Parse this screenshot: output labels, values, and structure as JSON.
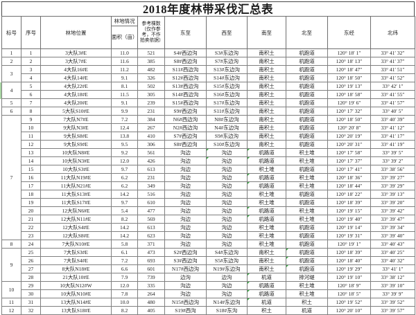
{
  "title": "2018年度林带采伐汇总表",
  "colors": {
    "flag_green": "#3fae49",
    "selection_green": "#a8d5a2"
  },
  "table": {
    "headers": {
      "label": "标号",
      "seq": "序号",
      "location": "林地位置",
      "land_group": "林地情况",
      "area": "面积（亩）",
      "count": "参考棵数（仅作参考，不作拍卖依据）",
      "east": "东至",
      "west": "西至",
      "south": "南至",
      "north": "北至",
      "lng": "东经",
      "lat": "北纬"
    },
    "column_keys": [
      "seq",
      "location",
      "area",
      "count",
      "east",
      "west",
      "south",
      "north",
      "lng",
      "lat"
    ],
    "label_groups": [
      {
        "label": "1",
        "span": 1
      },
      {
        "label": "2",
        "span": 1
      },
      {
        "label": "3",
        "span": 2
      },
      {
        "label": "4",
        "span": 2
      },
      {
        "label": "5",
        "span": 1
      },
      {
        "label": "6",
        "span": 1
      },
      {
        "label": "7",
        "span": 15
      },
      {
        "label": "8",
        "span": 1
      },
      {
        "label": "9",
        "span": 4
      },
      {
        "label": "10",
        "span": 2
      },
      {
        "label": "11",
        "span": 1
      },
      {
        "label": "12",
        "span": 1
      }
    ],
    "rows": [
      [
        "1",
        "3大队3#E",
        "11.0",
        "521",
        "S4#西边沟",
        "S3#东边沟",
        "南积土",
        "机跑道",
        "120° 18′ 1″",
        "33° 41′ 32″"
      ],
      [
        "2",
        "3大队7#E",
        "11.6",
        "385",
        "S8#西边沟",
        "S7#东边沟",
        "南积土",
        "机跑道",
        "120° 18′ 13″",
        "33° 41′ 37″"
      ],
      [
        "3",
        "4大队16#E",
        "11.2",
        "482",
        "S11#西边沟",
        "S13#东边沟",
        "南积土",
        "机跑道",
        "120° 18′ 47″",
        "33° 41′ 51″"
      ],
      [
        "4",
        "4大队14#E",
        "9.1",
        "326",
        "S12#西边沟",
        "S14#东边沟",
        "南积土",
        "机跑道",
        "120° 18′ 50″",
        "33° 41′ 52″"
      ],
      [
        "5",
        "4大队22#E",
        "8.1",
        "502",
        "S13#西边沟",
        "S15#东边沟",
        "南积土",
        "机跑道",
        "120° 19′ 13″",
        "33° 42′ 1″"
      ],
      [
        "6",
        "4大队18#E",
        "11.5",
        "305",
        "S14#西边沟",
        "S16#东边沟",
        "南积土",
        "机跑道",
        "120° 18′ 58″",
        "33° 41′ 55″"
      ],
      [
        "7",
        "4大队20#E",
        "9.1",
        "239",
        "S15#西边沟",
        "S17#东边沟",
        "南积土",
        "机跑道",
        "120° 19′ 6″",
        "33° 41′ 57″"
      ],
      [
        "8",
        "5大队S10#E",
        "9.9",
        "231",
        "S9#西边沟",
        "S11#东边沟",
        "南积土",
        "机跑道",
        "120° 17′ 32″",
        "33° 40′ 5″"
      ],
      [
        "9",
        "7大队N7#E",
        "7.2",
        "384",
        "N6#西边沟",
        "N8#东边沟",
        "南积土",
        "机跑道",
        "120° 18′ 50″",
        "33° 40′ 39″"
      ],
      [
        "10",
        "9大队N3#E",
        "12.4",
        "267",
        "N2#西边沟",
        "N4#东边沟",
        "南积土",
        "机跑道",
        "120° 20′ 8″",
        "33° 41′ 12″"
      ],
      [
        "11",
        "9大队S8#E",
        "13.8",
        "410",
        "S7#西边沟",
        "S9#东边沟",
        "南积土",
        "机跑道",
        "120° 20′ 19″",
        "33° 41′ 17″"
      ],
      [
        "12",
        "9大队S9#E",
        "9.5",
        "306",
        "S8#西边沟",
        "S10#东边沟",
        "南积土",
        "机跑道",
        "120° 20′ 31″",
        "33° 41′ 19″"
      ],
      [
        "13",
        "10大队N8#E",
        "9.2",
        "561",
        "沟边",
        "沟边",
        "机路道",
        "积土堆",
        "120° 17′ 58″",
        "33° 39′ 5″"
      ],
      [
        "14",
        "10大队N3#E",
        "12.0",
        "426",
        "沟边",
        "沟边",
        "机路道",
        "积土堆",
        "120° 17′ 37″",
        "33° 39′ 2″"
      ],
      [
        "15",
        "10大队S3#E",
        "9.7",
        "613",
        "沟边",
        "沟边",
        "积土堆",
        "机跑道",
        "120° 17′ 41″",
        "33° 38′ 56″"
      ],
      [
        "16",
        "11大队N19#E",
        "6.2",
        "231",
        "沟边",
        "沟边",
        "机路道",
        "积土堆",
        "120° 18′ 36″",
        "33° 39′ 27″"
      ],
      [
        "17",
        "11大队N21#E",
        "6.2",
        "349",
        "沟边",
        "沟边",
        "机路道",
        "积土堆",
        "120° 18′ 44″",
        "33° 39′ 29″"
      ],
      [
        "18",
        "11大队S13#E",
        "14.2",
        "516",
        "沟边",
        "沟边",
        "积土堆",
        "机跑道",
        "120° 18′ 22″",
        "33° 39′ 13″"
      ],
      [
        "19",
        "11大队S17#E",
        "9.7",
        "610",
        "沟边",
        "沟边",
        "积土堆",
        "机跑道",
        "120° 18′ 39″",
        "33° 39′ 20″"
      ],
      [
        "20",
        "12大队N6#E",
        "5.4",
        "477",
        "沟边",
        "沟边",
        "机路道",
        "积土堆",
        "120° 19′ 15″",
        "33° 39′ 42″"
      ],
      [
        "21",
        "12大队N11#E",
        "8.2",
        "569",
        "沟边",
        "沟边",
        "机路道",
        "积土堆",
        "120° 19′ 40″",
        "33° 39′ 47″"
      ],
      [
        "22",
        "12大队S4#E",
        "14.2",
        "613",
        "沟边",
        "沟边",
        "积土堆",
        "机跑道",
        "120° 19′ 14″",
        "33° 39′ 34″"
      ],
      [
        "23",
        "12大队S8#E",
        "14.2",
        "623",
        "沟边",
        "沟边",
        "积土堆",
        "机跑道",
        "120° 19′ 31″",
        "33° 39′ 40″"
      ],
      [
        "24",
        "7大队N10#E",
        "5.8",
        "371",
        "沟边",
        "沟边",
        "积土堆",
        "机跑道",
        "120° 19′ 1″",
        "33° 40′ 43″"
      ],
      [
        "25",
        "7大队S3#E",
        "6.1",
        "473",
        "S2#西边沟",
        "S4#东边沟",
        "南积土",
        "机跑道",
        "120° 18′ 39″",
        "33° 40′ 25″"
      ],
      [
        "26",
        "7大队S4#E",
        "7.2",
        "693",
        "S3#西边沟",
        "S5#东边沟",
        "南积土",
        "机跑道",
        "120° 18′ 40″",
        "33° 40′ 32″"
      ],
      [
        "27",
        "8大队N18#E",
        "6.6",
        "601",
        "N17#西边沟",
        "N19#东边沟",
        "南积土",
        "机跑道",
        "120° 19′ 29″",
        "33° 41′ 1″"
      ],
      [
        "28",
        "21大队10#E",
        "7.9",
        "739",
        "边沟",
        "边沟",
        "机道",
        "排河堤",
        "120° 19′ 10″",
        "33° 38′ 12″"
      ],
      [
        "29",
        "10大队N12#W",
        "12.0",
        "335",
        "沟边",
        "沟边",
        "机路道",
        "积土堆",
        "120° 18′ 9″",
        "33° 39′ 10″"
      ],
      [
        "30",
        "10大队N10#E",
        "7.8",
        "264",
        "沟边",
        "沟边",
        "机路道",
        "积土堆",
        "120° 18′ 5″",
        "33° 39′ 9″"
      ],
      [
        "31",
        "13大队N14#E",
        "10.0",
        "480",
        "N15#西边沟",
        "N14#东边沟",
        "机道",
        "积土",
        "120° 19′ 52″",
        "33° 39′ 52″"
      ],
      [
        "32",
        "13大队S18#E",
        "8.2",
        "405",
        "S19#西沟",
        "S18#东沟",
        "积土",
        "机道",
        "120° 20′ 10″",
        "33° 39′ 57″"
      ]
    ],
    "green_flags": [
      [
        13,
        "west"
      ],
      [
        13,
        "south"
      ],
      [
        14,
        "west"
      ],
      [
        14,
        "south"
      ],
      [
        16,
        "south"
      ],
      [
        17,
        "south"
      ],
      [
        20,
        "south"
      ],
      [
        21,
        "south"
      ],
      [
        25,
        "north"
      ],
      [
        26,
        "north"
      ],
      [
        27,
        "north"
      ],
      [
        28,
        "south"
      ],
      [
        29,
        "south"
      ],
      [
        30,
        "south"
      ],
      [
        31,
        "south"
      ]
    ]
  }
}
